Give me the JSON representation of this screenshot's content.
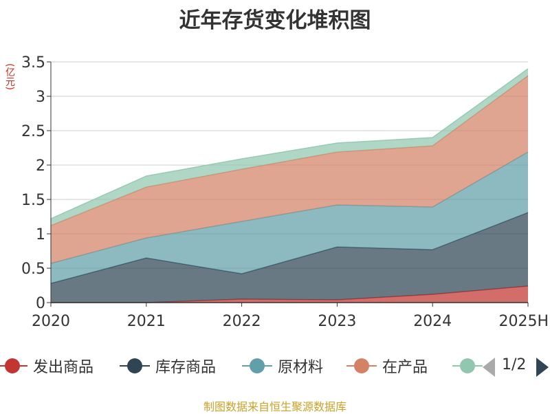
{
  "chart_data": {
    "type": "area",
    "stacked": true,
    "title": "近年存货变化堆积图",
    "ylabel": "(亿元)",
    "categories": [
      "2020",
      "2021",
      "2022",
      "2023",
      "2024",
      "2025H"
    ],
    "ylim": [
      0,
      3.5
    ],
    "yticks": [
      "0",
      "0.5",
      "1",
      "1.5",
      "2",
      "2.5",
      "3",
      "3.5"
    ],
    "grid": true,
    "legend_position": "bottom",
    "series": [
      {
        "name": "发出商品",
        "color": "#c23531",
        "values": [
          0.0,
          0.0,
          0.05,
          0.04,
          0.12,
          0.24
        ]
      },
      {
        "name": "库存商品",
        "color": "#2f4554",
        "values": [
          0.28,
          0.65,
          0.37,
          0.77,
          0.65,
          1.07
        ]
      },
      {
        "name": "原材料",
        "color": "#61a0a8",
        "values": [
          0.29,
          0.29,
          0.76,
          0.61,
          0.62,
          0.88
        ]
      },
      {
        "name": "在产品",
        "color": "#d48265",
        "values": [
          0.55,
          0.74,
          0.76,
          0.77,
          0.89,
          1.11
        ]
      },
      {
        "name": "",
        "color": "#91c7ae",
        "values": [
          0.1,
          0.16,
          0.15,
          0.13,
          0.12,
          0.1
        ]
      }
    ]
  },
  "legend_pager": {
    "text": "1/2"
  },
  "source": "制图数据来自恒生聚源数据库"
}
